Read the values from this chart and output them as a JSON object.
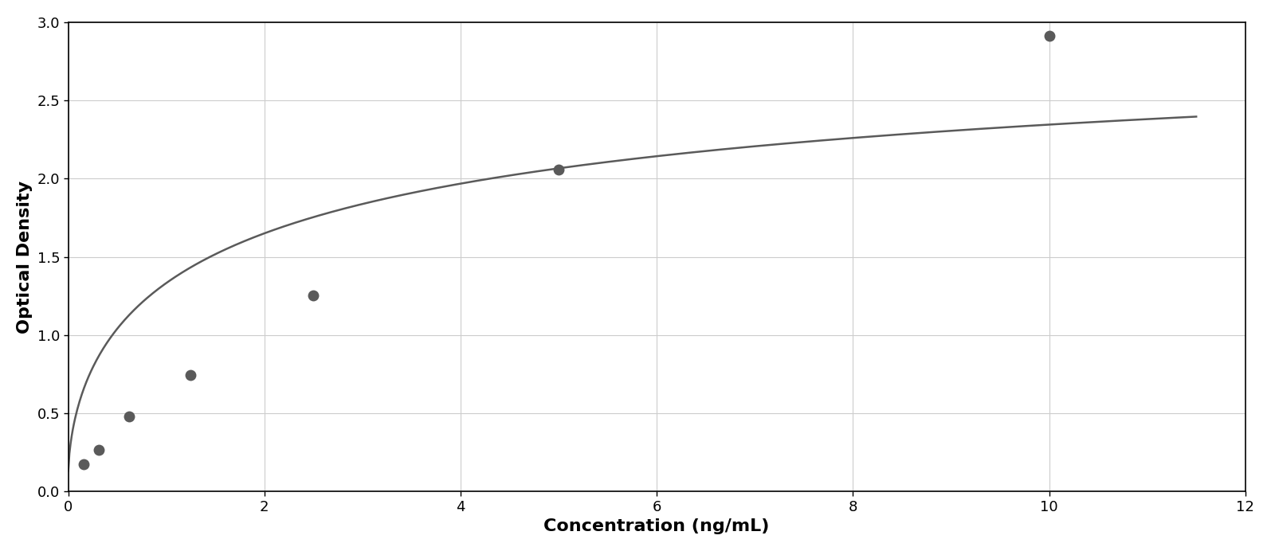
{
  "x_data": [
    0.156,
    0.313,
    0.625,
    1.25,
    2.5,
    5.0,
    10.0
  ],
  "y_data": [
    0.175,
    0.265,
    0.48,
    0.745,
    1.255,
    2.055,
    2.915
  ],
  "xlabel": "Concentration (ng/mL)",
  "ylabel": "Optical Density",
  "xlim": [
    0,
    12
  ],
  "ylim": [
    0,
    3
  ],
  "x_ticks": [
    0,
    2,
    4,
    6,
    8,
    10,
    12
  ],
  "y_ticks": [
    0,
    0.5,
    1.0,
    1.5,
    2.0,
    2.5,
    3.0
  ],
  "marker_color": "#5a5a5a",
  "line_color": "#5a5a5a",
  "background_color": "#ffffff",
  "plot_bg_color": "#ffffff",
  "grid_color": "#cccccc",
  "border_color": "#000000",
  "marker_size": 9,
  "line_width": 1.8,
  "xlabel_fontsize": 16,
  "ylabel_fontsize": 16,
  "tick_fontsize": 13
}
